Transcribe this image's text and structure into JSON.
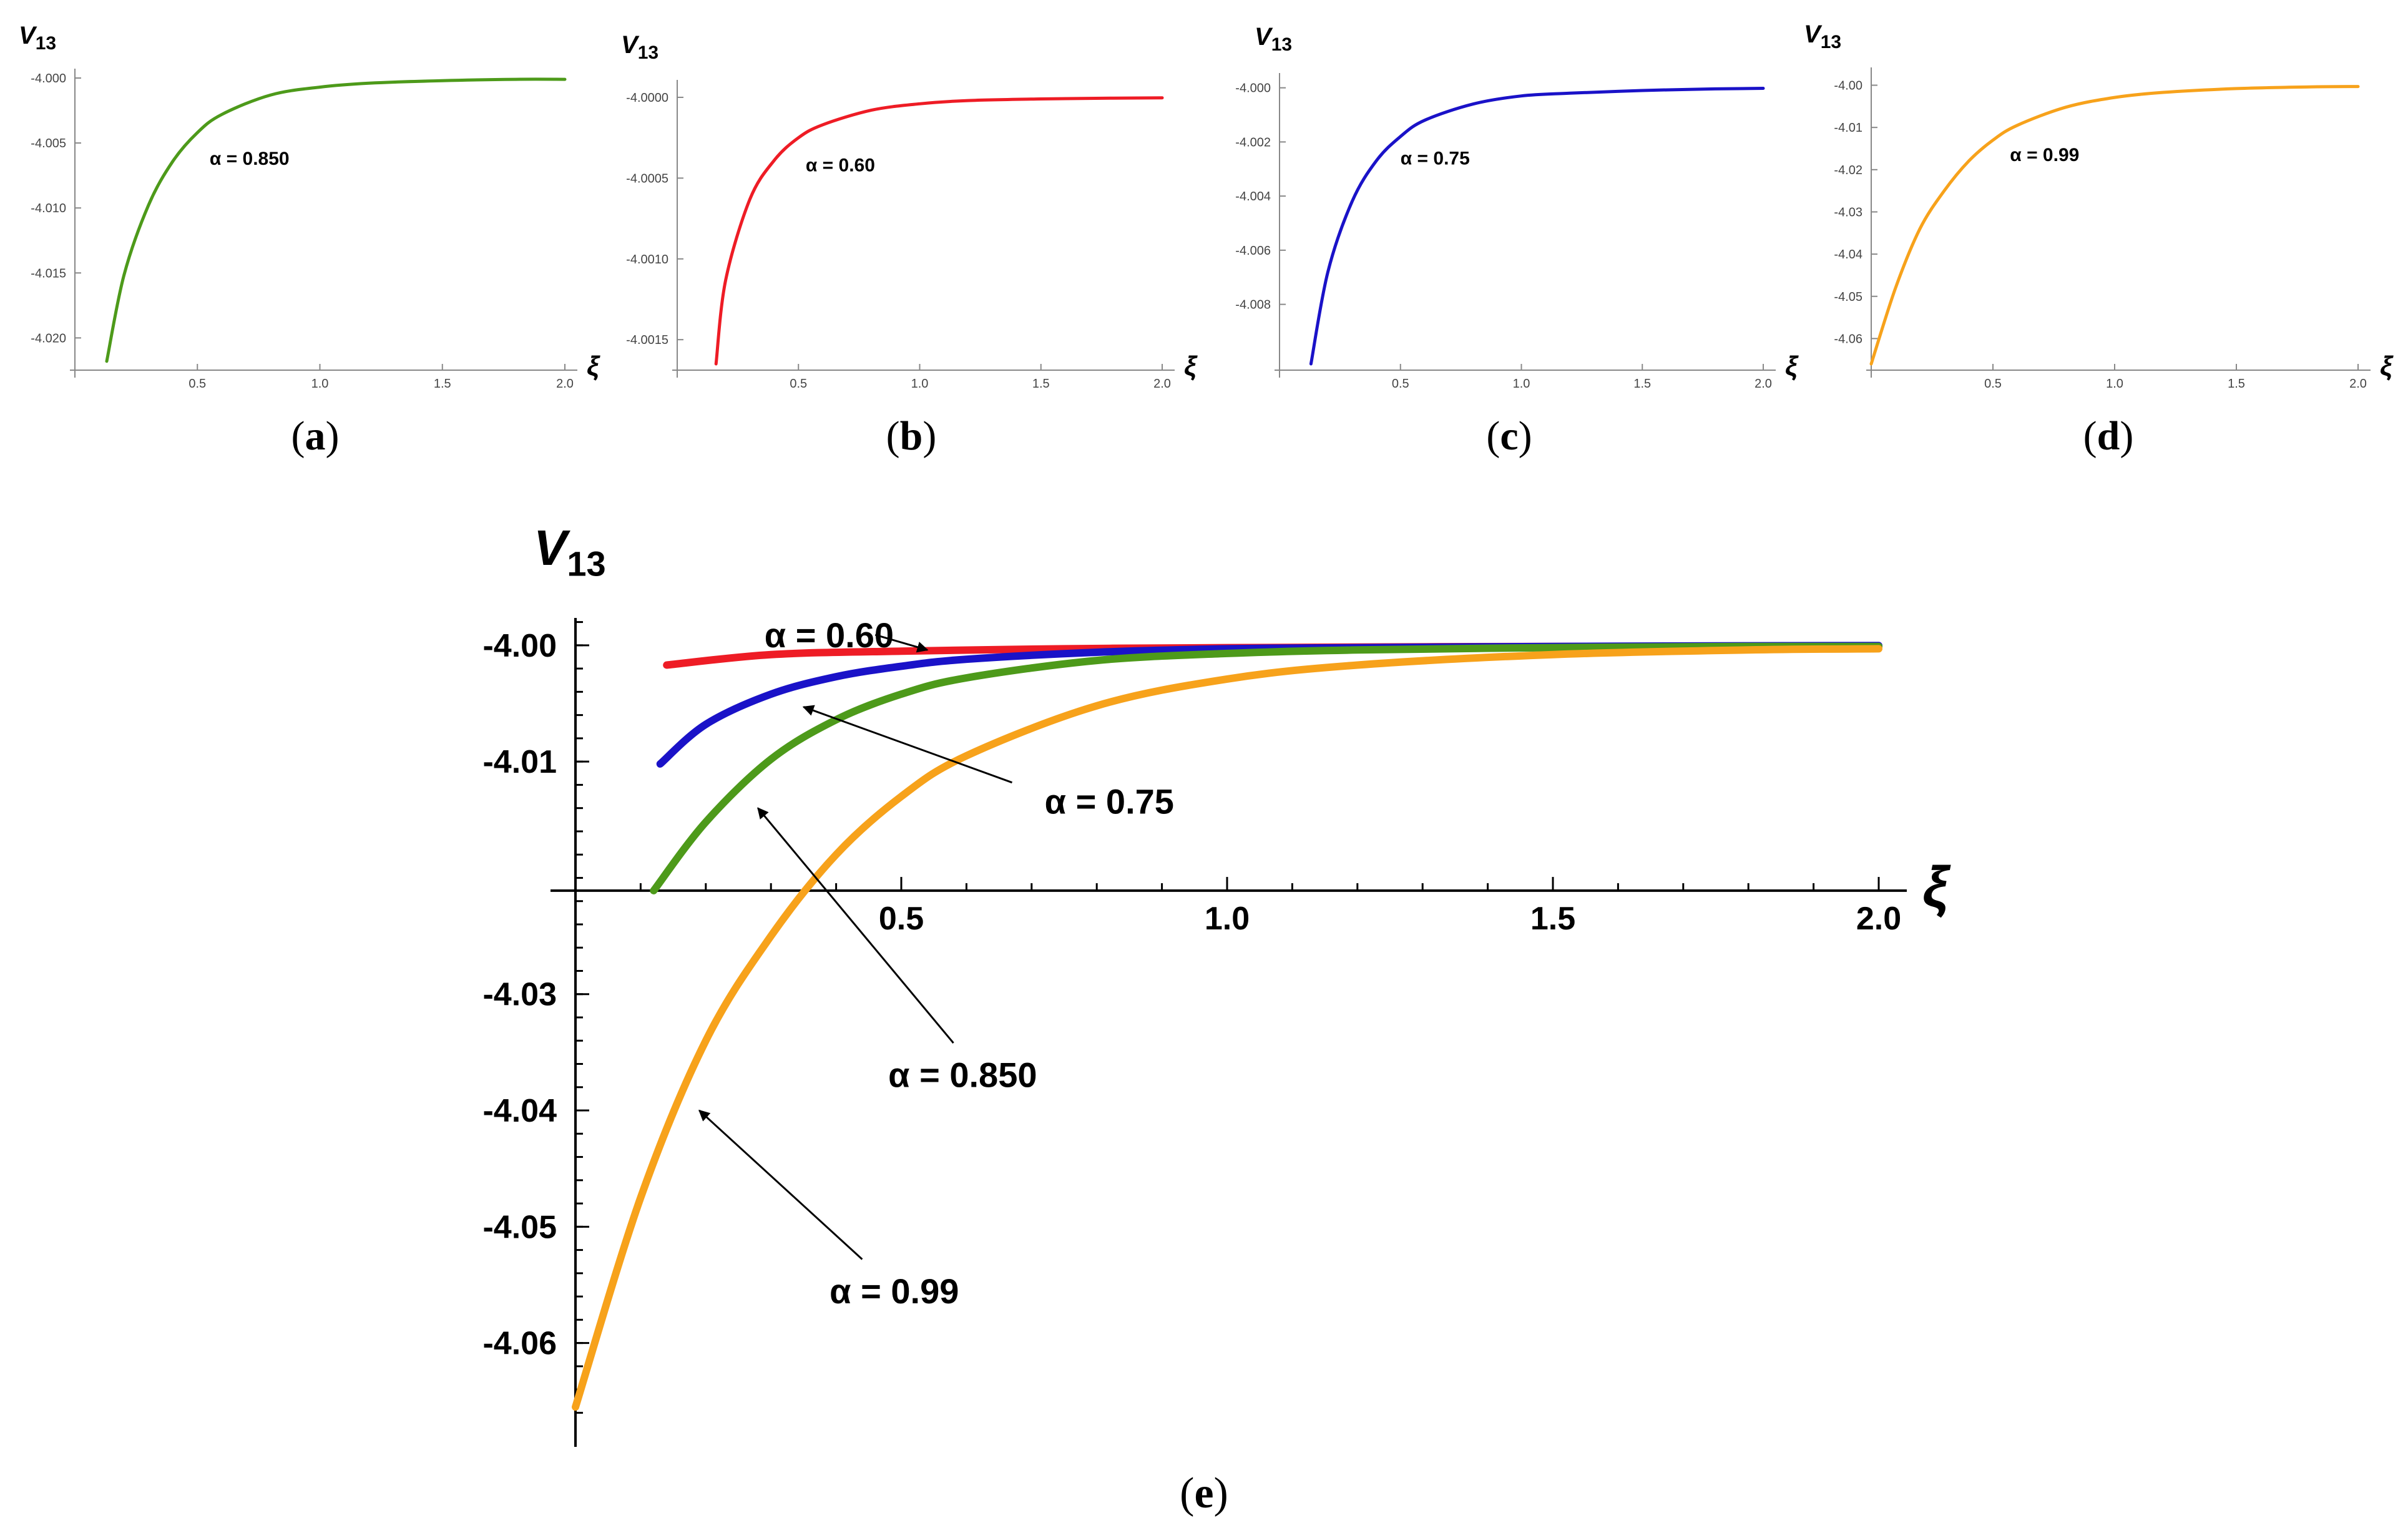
{
  "figure": {
    "captions": [
      "a",
      "b",
      "c",
      "d",
      "e"
    ]
  },
  "chart_data": [
    {
      "panel": "a",
      "type": "line",
      "ylabel_main": "V",
      "ylabel_sub": "13",
      "xlabel": "ξ",
      "curve_label": "α = 0.850",
      "color": "#4d9a1a",
      "xlim": [
        0,
        2.0
      ],
      "ylim": [
        -4.022,
        -4.0
      ],
      "x_ticks": [
        "0.5",
        "1.0",
        "1.5",
        "2.0"
      ],
      "x_tick_values": [
        0.5,
        1.0,
        1.5,
        2.0
      ],
      "y_ticks": [
        "-4.000",
        "-4.005",
        "-4.010",
        "-4.015",
        "-4.020"
      ],
      "y_tick_values": [
        -4.0,
        -4.005,
        -4.01,
        -4.015,
        -4.02
      ],
      "series": [
        {
          "name": "α = 0.850",
          "x": [
            0.13,
            0.2,
            0.3,
            0.4,
            0.5,
            0.6,
            0.8,
            1.0,
            1.2,
            1.5,
            1.8,
            2.0
          ],
          "y": [
            -4.0218,
            -4.0152,
            -4.0098,
            -4.0064,
            -4.0042,
            -4.0028,
            -4.0013,
            -4.0007,
            -4.0004,
            -4.0002,
            -4.0001,
            -4.0001
          ]
        }
      ],
      "annotation_x": 0.55,
      "annotation_y": -4.0062
    },
    {
      "panel": "b",
      "type": "line",
      "ylabel_main": "V",
      "ylabel_sub": "13",
      "xlabel": "ξ",
      "curve_label": "α = 0.60",
      "color": "#ee1c25",
      "xlim": [
        0,
        2.0
      ],
      "ylim": [
        -4.00165,
        -3.99995
      ],
      "x_ticks": [
        "0.5",
        "1.0",
        "1.5",
        "2.0"
      ],
      "x_tick_values": [
        0.5,
        1.0,
        1.5,
        2.0
      ],
      "y_ticks": [
        "-4.0000",
        "-4.0005",
        "-4.0010",
        "-4.0015"
      ],
      "y_tick_values": [
        -4.0,
        -4.0005,
        -4.001,
        -4.0015
      ],
      "series": [
        {
          "name": "α = 0.60",
          "x": [
            0.16,
            0.2,
            0.3,
            0.4,
            0.5,
            0.6,
            0.8,
            1.0,
            1.2,
            1.5,
            1.8,
            2.0
          ],
          "y": [
            -4.00165,
            -4.00113,
            -4.00063,
            -4.00039,
            -4.00025,
            -4.00017,
            -4.00008,
            -4.00004,
            -4.00002,
            -4.00001,
            -4.000005,
            -4.000003
          ]
        }
      ],
      "annotation_x": 0.53,
      "annotation_y": -4.00042
    },
    {
      "panel": "c",
      "type": "line",
      "ylabel_main": "V",
      "ylabel_sub": "13",
      "xlabel": "ξ",
      "curve_label": "α = 0.75",
      "color": "#1a12c8",
      "xlim": [
        0,
        2.0
      ],
      "ylim": [
        -4.0102,
        -3.9998
      ],
      "x_ticks": [
        "0.5",
        "1.0",
        "1.5",
        "2.0"
      ],
      "x_tick_values": [
        0.5,
        1.0,
        1.5,
        2.0
      ],
      "y_ticks": [
        "-4.000",
        "-4.002",
        "-4.004",
        "-4.006",
        "-4.008"
      ],
      "y_tick_values": [
        -4.0,
        -4.002,
        -4.004,
        -4.006,
        -4.008
      ],
      "series": [
        {
          "name": "α = 0.75",
          "x": [
            0.13,
            0.2,
            0.3,
            0.4,
            0.5,
            0.6,
            0.8,
            1.0,
            1.2,
            1.5,
            1.8,
            2.0
          ],
          "y": [
            -4.0102,
            -4.0068,
            -4.0042,
            -4.0027,
            -4.0018,
            -4.0012,
            -4.0006,
            -4.0003,
            -4.0002,
            -4.0001,
            -4.00004,
            -4.00002
          ]
        }
      ],
      "annotation_x": 0.5,
      "annotation_y": -4.0026
    },
    {
      "panel": "d",
      "type": "line",
      "ylabel_main": "V",
      "ylabel_sub": "13",
      "xlabel": "ξ",
      "curve_label": "α = 0.99",
      "color": "#f7a21b",
      "xlim": [
        0,
        2.0
      ],
      "ylim": [
        -4.066,
        -3.998
      ],
      "x_ticks": [
        "0.5",
        "1.0",
        "1.5",
        "2.0"
      ],
      "x_tick_values": [
        0.5,
        1.0,
        1.5,
        2.0
      ],
      "y_ticks": [
        "-4.00",
        "-4.01",
        "-4.02",
        "-4.03",
        "-4.04",
        "-4.05",
        "-4.06"
      ],
      "y_tick_values": [
        -4.0,
        -4.01,
        -4.02,
        -4.03,
        -4.04,
        -4.05,
        -4.06
      ],
      "series": [
        {
          "name": "α = 0.99",
          "x": [
            0.0,
            0.1,
            0.2,
            0.3,
            0.4,
            0.5,
            0.6,
            0.8,
            1.0,
            1.2,
            1.5,
            1.8,
            2.0
          ],
          "y": [
            -4.066,
            -4.048,
            -4.034,
            -4.025,
            -4.018,
            -4.013,
            -4.0095,
            -4.0052,
            -4.0029,
            -4.0017,
            -4.0008,
            -4.0004,
            -4.0003
          ]
        }
      ],
      "annotation_x": 0.57,
      "annotation_y": -4.0165
    },
    {
      "panel": "e",
      "type": "line",
      "ylabel_main": "V",
      "ylabel_sub": "13",
      "xlabel": "ξ",
      "xlim": [
        0,
        2.0
      ],
      "ylim": [
        -4.0685,
        -3.9955
      ],
      "x_axis_at_y": -4.0211,
      "x_ticks": [
        "0.5",
        "1.0",
        "1.5",
        "2.0"
      ],
      "x_tick_values": [
        0.5,
        1.0,
        1.5,
        2.0
      ],
      "y_ticks": [
        "-4.00",
        "-4.01",
        "-4.03",
        "-4.04",
        "-4.05",
        "-4.06"
      ],
      "y_tick_values": [
        -4.0,
        -4.01,
        -4.03,
        -4.04,
        -4.05,
        -4.06
      ],
      "series": [
        {
          "name": "α = 0.60",
          "color": "#ee1c25",
          "x": [
            0.14,
            0.3,
            0.5,
            0.75,
            1.0,
            1.5,
            2.0
          ],
          "y": [
            -4.0017,
            -4.0008,
            -4.0005,
            -4.0003,
            -4.0002,
            -4.0001,
            -4.0001
          ]
        },
        {
          "name": "α = 0.75",
          "color": "#1a12c8",
          "x": [
            0.13,
            0.2,
            0.3,
            0.4,
            0.5,
            0.6,
            0.8,
            1.0,
            1.2,
            1.5,
            1.8,
            2.0
          ],
          "y": [
            -4.0102,
            -4.0068,
            -4.0042,
            -4.0027,
            -4.0018,
            -4.0012,
            -4.0006,
            -4.0003,
            -4.0002,
            -4.0001,
            -4.00004,
            -4.00002
          ]
        },
        {
          "name": "α = 0.850",
          "color": "#4d9a1a",
          "x": [
            0.12,
            0.2,
            0.3,
            0.4,
            0.5,
            0.6,
            0.8,
            1.0,
            1.2,
            1.5,
            1.8,
            2.0
          ],
          "y": [
            -4.0211,
            -4.0152,
            -4.0098,
            -4.0064,
            -4.0042,
            -4.0028,
            -4.0013,
            -4.0007,
            -4.0004,
            -4.0002,
            -4.0001,
            -4.0001
          ]
        },
        {
          "name": "α = 0.99",
          "color": "#f7a21b",
          "x": [
            0.0,
            0.1,
            0.2,
            0.3,
            0.4,
            0.5,
            0.6,
            0.8,
            1.0,
            1.2,
            1.5,
            1.8,
            2.0
          ],
          "y": [
            -4.0655,
            -4.0475,
            -4.034,
            -4.025,
            -4.018,
            -4.013,
            -4.0095,
            -4.0052,
            -4.0029,
            -4.0017,
            -4.0008,
            -4.0004,
            -4.0003
          ]
        }
      ],
      "annotations": [
        {
          "text": "α = 0.60",
          "label_x": 0.29,
          "label_y": -3.9991,
          "arrow_from_x": 0.46,
          "arrow_from_y": -3.9991,
          "arrow_to_x": 0.54,
          "arrow_to_y": -4.0004
        },
        {
          "text": "α = 0.75",
          "label_x": 0.72,
          "label_y": -4.0134,
          "arrow_from_x": 0.67,
          "arrow_from_y": -4.0118,
          "arrow_to_x": 0.35,
          "arrow_to_y": -4.0053
        },
        {
          "text": "α = 0.850",
          "label_x": 0.48,
          "label_y": -4.0369,
          "arrow_from_x": 0.58,
          "arrow_from_y": -4.0342,
          "arrow_to_x": 0.28,
          "arrow_to_y": -4.014
        },
        {
          "text": "α = 0.99",
          "label_x": 0.39,
          "label_y": -4.0555,
          "arrow_from_x": 0.44,
          "arrow_from_y": -4.0528,
          "arrow_to_x": 0.19,
          "arrow_to_y": -4.04
        }
      ]
    }
  ]
}
